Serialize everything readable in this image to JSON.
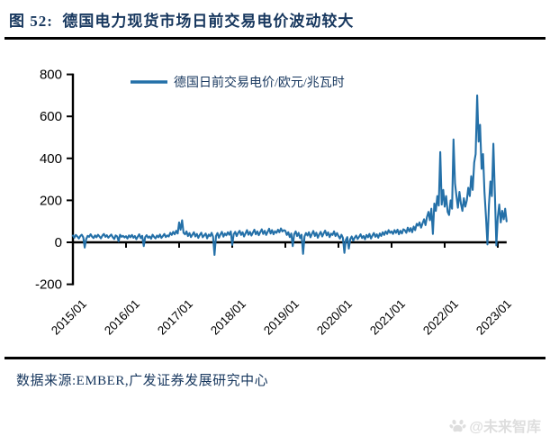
{
  "header": {
    "title": "图 52:  德国电力现货市场日前交易电价波动较大"
  },
  "footer": {
    "source": "数据来源:EMBER,广发证券发展研究中心"
  },
  "watermark": {
    "text": "@未来智库",
    "icon": "paw-icon",
    "color": "#dedede"
  },
  "colors": {
    "title_navy": "#17375E",
    "series_blue": "#2470A8",
    "axis_black": "#000000"
  },
  "chart_data": {
    "type": "line",
    "title": "",
    "xlabel": "",
    "ylabel": "",
    "grid": false,
    "legend_position": "top",
    "ylim": [
      -200,
      800
    ],
    "y_ticks": [
      800,
      600,
      400,
      200,
      0,
      -200
    ],
    "x_tick_months": [
      0,
      12,
      24,
      36,
      48,
      60,
      72,
      84,
      96
    ],
    "x_tick_labels": [
      "2015/01",
      "2016/01",
      "2017/01",
      "2018/01",
      "2019/01",
      "2020/01",
      "2021/01",
      "2022/01",
      "2023/01"
    ],
    "x_range_months": [
      0,
      98
    ],
    "series": [
      {
        "name": "德国日前交易电价/欧元/兆瓦时",
        "color": "#2470A8",
        "start": "2015/01",
        "step_months": 0.33333,
        "values": [
          32,
          22,
          35,
          28,
          18,
          30,
          36,
          24,
          -25,
          15,
          31,
          26,
          38,
          27,
          20,
          33,
          24,
          36,
          28,
          19,
          32,
          40,
          26,
          34,
          22,
          30,
          37,
          25,
          16,
          33,
          28,
          5,
          36,
          26,
          31,
          23,
          29,
          18,
          33,
          24,
          35,
          22,
          30,
          15,
          27,
          38,
          20,
          31,
          -18,
          25,
          34,
          22,
          28,
          17,
          36,
          26,
          19,
          32,
          24,
          37,
          21,
          30,
          40,
          25,
          33,
          28,
          45,
          35,
          50,
          38,
          55,
          42,
          95,
          60,
          105,
          45,
          38,
          52,
          30,
          44,
          25,
          36,
          48,
          28,
          40,
          21,
          35,
          46,
          24,
          33,
          42,
          19,
          37,
          29,
          45,
          26,
          -60,
          31,
          44,
          22,
          38,
          50,
          27,
          42,
          33,
          48,
          36,
          52,
          -12,
          38,
          50,
          30,
          45,
          55,
          35,
          48,
          28,
          42,
          58,
          36,
          50,
          32,
          46,
          60,
          38,
          52,
          34,
          48,
          62,
          40,
          55,
          35,
          50,
          65,
          42,
          58,
          38,
          53,
          45,
          60,
          48,
          66,
          52,
          58,
          55,
          35,
          48,
          25,
          42,
          -18,
          38,
          52,
          30,
          45,
          20,
          36,
          -55,
          28,
          44,
          32,
          48,
          24,
          40,
          54,
          30,
          46,
          22,
          38,
          50,
          28,
          43,
          56,
          33,
          47,
          25,
          41,
          35,
          52,
          30,
          44,
          30,
          18,
          36,
          22,
          -50,
          12,
          25,
          -30,
          15,
          28,
          8,
          22,
          32,
          16,
          26,
          38,
          20,
          30,
          14,
          35,
          24,
          40,
          18,
          32,
          44,
          26,
          38,
          22,
          42,
          30,
          48,
          35,
          52,
          40,
          58,
          45,
          52,
          40,
          58,
          45,
          60,
          38,
          55,
          42,
          62,
          58,
          45,
          70,
          52,
          68,
          48,
          75,
          58,
          88,
          80,
          95,
          70,
          90,
          110,
          82,
          120,
          145,
          105,
          160,
          40,
          185,
          150,
          220,
          175,
          430,
          180,
          250,
          170,
          220,
          145,
          130,
          200,
          160,
          490,
          280,
          220,
          165,
          240,
          185,
          150,
          210,
          170,
          200,
          260,
          220,
          315,
          250,
          380,
          420,
          700,
          480,
          560,
          350,
          420,
          240,
          120,
          -10,
          180,
          290,
          220,
          470,
          240,
          -15,
          120,
          180,
          95,
          150,
          110,
          160,
          100
        ]
      }
    ]
  }
}
